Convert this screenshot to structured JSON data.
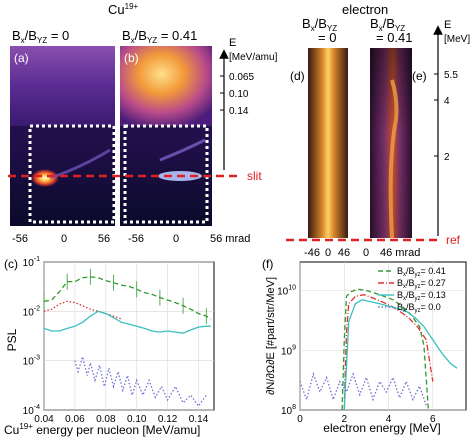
{
  "figure": {
    "cu_title": "Cu",
    "cu_title_sup": "19+",
    "electron_title": "electron",
    "ratio_label_a": "B",
    "ratio_label_a_sub1": "x",
    "ratio_label_a_mid": "/B",
    "ratio_label_a_sub2": "YZ",
    "ratio_a_value": " = 0",
    "ratio_b_value": " = 0.41",
    "ratio_d_line2": "= 0",
    "ratio_e_line2": "= 0.41",
    "panel_labels": [
      "(a)",
      "(b)",
      "(c)",
      "(d)",
      "(e)",
      "(f)"
    ],
    "cu_energy_axis_title": "E",
    "cu_energy_axis_unit": "[MeV/amu]",
    "cu_energy_ticks": [
      "0.065",
      "0.10",
      "0.14"
    ],
    "slit_label": "slit",
    "ref_label": "ref",
    "cu_mrad_ticks_a": [
      "-56",
      "0",
      "56"
    ],
    "cu_mrad_ticks_b": [
      "-56",
      "0",
      "56 mrad"
    ],
    "el_mrad_ticks": [
      "-46",
      "0",
      "46",
      "0",
      "46 mrad"
    ],
    "el_energy_axis_title": "E",
    "el_energy_axis_unit": "[MeV]",
    "el_energy_ticks": [
      "5.5",
      "4",
      "2"
    ]
  },
  "chart_data": [
    {
      "panel": "(c)",
      "type": "line",
      "ylabel": "PSL",
      "xlabel_prefix": "Cu",
      "xlabel_sup": "19+",
      "xlabel_rest": " energy per nucleon [MeV/amu]",
      "xlim": [
        0.04,
        0.15
      ],
      "ylim": [
        0.0001,
        0.1
      ],
      "yscale": "log",
      "x_ticks": [
        "0.04",
        "0.06",
        "0.08",
        "0.10",
        "0.12",
        "0.14"
      ],
      "y_ticks": [
        "10",
        "10",
        "10",
        "10"
      ],
      "y_tick_exps": [
        "-1",
        "-2",
        "-3",
        "-4"
      ],
      "series": [
        {
          "style": "green-dashed",
          "color": "#2e9a2e",
          "x": [
            0.04,
            0.045,
            0.05,
            0.055,
            0.06,
            0.065,
            0.07,
            0.075,
            0.08,
            0.085,
            0.09,
            0.095,
            0.1,
            0.105,
            0.11,
            0.115,
            0.12,
            0.125,
            0.13,
            0.135,
            0.14,
            0.145,
            0.148
          ],
          "y": [
            0.016,
            0.017,
            0.025,
            0.04,
            0.04,
            0.048,
            0.05,
            0.048,
            0.042,
            0.038,
            0.034,
            0.032,
            0.028,
            0.024,
            0.022,
            0.019,
            0.017,
            0.015,
            0.013,
            0.011,
            0.009,
            0.008,
            0.007
          ]
        },
        {
          "style": "red-dotted",
          "color": "#e03030",
          "x": [
            0.04,
            0.045,
            0.05,
            0.055,
            0.06,
            0.065,
            0.07,
            0.075,
            0.08,
            0.085,
            0.09
          ],
          "y": [
            0.01,
            0.011,
            0.014,
            0.016,
            0.015,
            0.013,
            0.011,
            0.01,
            0.009,
            0.008,
            0.007
          ]
        },
        {
          "style": "cyan-solid",
          "color": "#38c0c0",
          "x": [
            0.04,
            0.045,
            0.05,
            0.055,
            0.06,
            0.065,
            0.07,
            0.075,
            0.08,
            0.085,
            0.09,
            0.095,
            0.1,
            0.105,
            0.11,
            0.115,
            0.12,
            0.125,
            0.13,
            0.135,
            0.14,
            0.145,
            0.148
          ],
          "y": [
            0.0045,
            0.004,
            0.004,
            0.0045,
            0.005,
            0.006,
            0.008,
            0.01,
            0.009,
            0.0075,
            0.006,
            0.0055,
            0.005,
            0.0045,
            0.004,
            0.0038,
            0.004,
            0.0038,
            0.0036,
            0.0042,
            0.0048,
            0.005,
            0.005
          ]
        },
        {
          "style": "blue-dotted",
          "color": "#7070d0",
          "x": [
            0.06,
            0.062,
            0.065,
            0.068,
            0.07,
            0.073,
            0.076,
            0.079,
            0.082,
            0.085,
            0.088,
            0.091,
            0.094,
            0.097,
            0.1,
            0.104,
            0.108,
            0.112,
            0.116,
            0.12,
            0.125,
            0.13,
            0.135,
            0.14,
            0.145
          ],
          "y": [
            0.001,
            0.0006,
            0.0012,
            0.0005,
            0.0009,
            0.0004,
            0.0008,
            0.0003,
            0.0007,
            0.0003,
            0.0006,
            0.00025,
            0.0005,
            0.0002,
            0.0004,
            0.0002,
            0.0004,
            0.00018,
            0.0003,
            0.00016,
            0.0003,
            0.00014,
            0.0002,
            0.00012,
            0.0002
          ]
        }
      ]
    },
    {
      "panel": "(f)",
      "type": "line",
      "ylabel": "∂N/∂Ω∂E [#part/str/MeV]",
      "xlabel": "electron energy [MeV]",
      "xlim": [
        0,
        7.5
      ],
      "ylim": [
        100000000,
        30000000000
      ],
      "yscale": "log",
      "x_ticks": [
        "0",
        "2",
        "4",
        "6"
      ],
      "y_ticks": [
        "10",
        "10",
        "10"
      ],
      "y_tick_exps": [
        "10",
        "9",
        "8"
      ],
      "legend": [
        "= 0.41",
        "= 0.27",
        "= 0.13",
        "= 0.0"
      ],
      "legend_position": "top-right",
      "series": [
        {
          "name": "0.41",
          "style": "green-dashed",
          "color": "#2e9a2e",
          "x": [
            1.9,
            2.0,
            2.1,
            2.3,
            2.6,
            3.0,
            3.4,
            3.8,
            4.2,
            4.6,
            5.0,
            5.4,
            5.6,
            5.8
          ],
          "y": [
            100000000.0,
            1500000000.0,
            8000000000.0,
            9500000000.0,
            10500000000.0,
            10000000000.0,
            9000000000.0,
            8000000000.0,
            7000000000.0,
            5500000000.0,
            4000000000.0,
            2500000000.0,
            1200000000.0,
            100000000.0
          ]
        },
        {
          "name": "0.27",
          "style": "red-dashdot",
          "color": "#e03030",
          "x": [
            2.0,
            2.1,
            2.2,
            2.5,
            2.9,
            3.3,
            3.7,
            4.1,
            4.5,
            4.9,
            5.3,
            5.7,
            6.0
          ],
          "y": [
            100000000.0,
            2000000000.0,
            6000000000.0,
            8000000000.0,
            8500000000.0,
            7500000000.0,
            6500000000.0,
            5500000000.0,
            4500000000.0,
            3500000000.0,
            2500000000.0,
            1500000000.0,
            300000000.0
          ]
        },
        {
          "name": "0.13",
          "style": "cyan-solid",
          "color": "#38c0c0",
          "x": [
            2.0,
            2.2,
            2.5,
            2.8,
            3.2,
            3.6,
            4.0,
            4.4,
            4.8,
            5.2,
            5.6,
            6.0,
            6.4,
            6.8,
            7.1
          ],
          "y": [
            100000000.0,
            3000000000.0,
            6000000000.0,
            7000000000.0,
            6500000000.0,
            6000000000.0,
            5500000000.0,
            5000000000.0,
            4500000000.0,
            3500000000.0,
            2500000000.0,
            1500000000.0,
            900000000.0,
            600000000.0,
            500000000.0
          ]
        },
        {
          "name": "0.0",
          "style": "blue-dotted",
          "color": "#7070d0",
          "x": [
            0.0,
            0.3,
            0.6,
            0.9,
            1.2,
            1.5,
            1.8,
            2.1,
            2.4,
            2.7,
            3.0,
            3.3,
            3.6,
            3.9,
            4.2,
            4.5,
            4.8,
            5.1,
            5.4,
            5.7
          ],
          "y": [
            300000000.0,
            150000000.0,
            400000000.0,
            200000000.0,
            350000000.0,
            150000000.0,
            300000000.0,
            200000000.0,
            400000000.0,
            180000000.0,
            350000000.0,
            150000000.0,
            300000000.0,
            200000000.0,
            350000000.0,
            160000000.0,
            300000000.0,
            150000000.0,
            250000000.0,
            120000000.0
          ]
        }
      ]
    }
  ]
}
